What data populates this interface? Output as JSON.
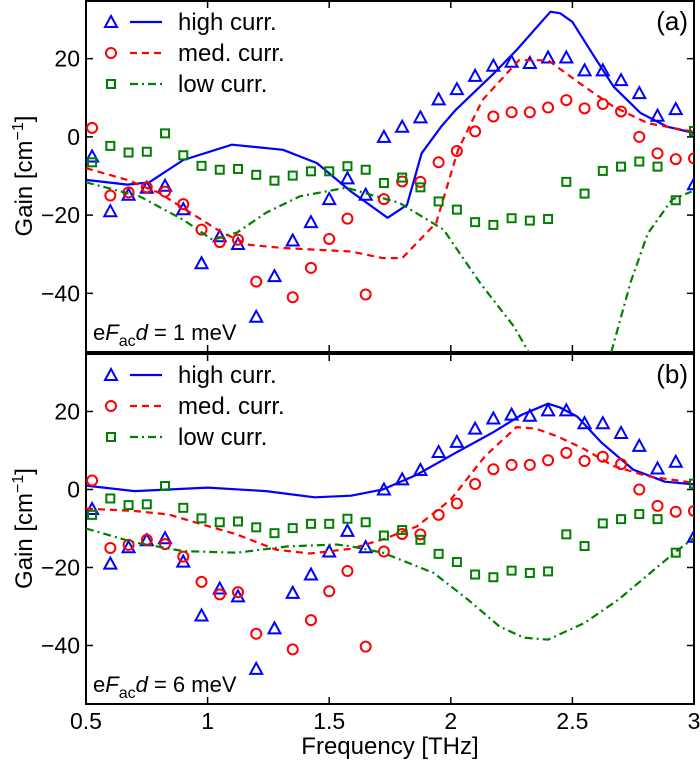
{
  "chart_data": [
    {
      "type": "scatter+line",
      "panel_label": "(a)",
      "annotation": {
        "pre": "e",
        "F": "F",
        "sub": "ac",
        "d": "d",
        "post": " = 1 meV"
      },
      "ylabel": "Gain [cm",
      "ylabel_sup": "−1",
      "ylabel_end": "]",
      "xlim": [
        0.5,
        3
      ],
      "ylim": [
        -55,
        35
      ],
      "yticks": [
        "-40",
        "-20",
        "0",
        "20"
      ],
      "xticks": [
        0.5,
        1,
        1.5,
        2,
        2.5,
        3
      ],
      "legend_position": "top-left",
      "series": [
        {
          "name": "high curr.",
          "color": "#0000ff",
          "marker": "triangle",
          "line": "solid",
          "points": [
            -5,
            -19,
            -14.8,
            -13,
            -12.5,
            -18.5,
            -32.3,
            -25.4,
            -27.4,
            -46,
            -35.6,
            -26.5,
            -21.8,
            -15.9,
            -10.6,
            -14.8,
            0,
            2.6,
            5,
            9.6,
            12.2,
            15.6,
            18.2,
            19.2,
            18.9,
            20.3,
            20.3,
            17,
            17,
            14.5,
            11.2,
            5.4,
            7.1,
            -12.1
          ],
          "curve": [
            [
              0.5,
              -11
            ],
            [
              0.67,
              -12.2
            ],
            [
              0.76,
              -11.6
            ],
            [
              0.9,
              -5.9
            ],
            [
              1.1,
              -2
            ],
            [
              1.31,
              -3.3
            ],
            [
              1.45,
              -6.7
            ],
            [
              1.59,
              -14
            ],
            [
              1.74,
              -20.7
            ],
            [
              1.82,
              -17.4
            ],
            [
              1.88,
              -4.2
            ],
            [
              1.96,
              2.6
            ],
            [
              2.02,
              6.9
            ],
            [
              2.17,
              15.8
            ],
            [
              2.27,
              22.2
            ],
            [
              2.41,
              32
            ],
            [
              2.45,
              31.6
            ],
            [
              2.5,
              29.4
            ],
            [
              2.59,
              20.5
            ],
            [
              2.67,
              12.8
            ],
            [
              2.78,
              6.1
            ],
            [
              2.89,
              2.6
            ],
            [
              3.0,
              1.0
            ]
          ]
        },
        {
          "name": "med. curr.",
          "color": "#ff0000",
          "marker": "circle",
          "line": "dashed",
          "points": [
            2.3,
            -15,
            -14.2,
            -12.9,
            -14,
            -17.2,
            -23.7,
            -26.9,
            -26.3,
            -37,
            null,
            -41,
            -33.5,
            -26.1,
            -20.9,
            -40.3,
            -15.9,
            -11.4,
            -11.5,
            -6.5,
            -3.6,
            1.4,
            5.2,
            6.3,
            6.3,
            7.5,
            9.4,
            7.3,
            8.4,
            6.5,
            0,
            -4.2,
            -5.7,
            -5.5
          ],
          "curve": [
            [
              0.5,
              -8
            ],
            [
              0.67,
              -11
            ],
            [
              0.8,
              -14.3
            ],
            [
              0.93,
              -19.4
            ],
            [
              1.06,
              -24.5
            ],
            [
              1.17,
              -27.6
            ],
            [
              1.31,
              -28.4
            ],
            [
              1.59,
              -29.3
            ],
            [
              1.72,
              -31
            ],
            [
              1.8,
              -31
            ],
            [
              1.94,
              -22
            ],
            [
              2.03,
              -3.3
            ],
            [
              2.13,
              9.4
            ],
            [
              2.28,
              19.6
            ],
            [
              2.4,
              19.6
            ],
            [
              2.53,
              13.7
            ],
            [
              2.67,
              7.7
            ],
            [
              2.81,
              3.5
            ],
            [
              3.0,
              1.3
            ]
          ]
        },
        {
          "name": "low curr.",
          "color": "#008000",
          "marker": "square",
          "line": "dashdot",
          "points": [
            -6.5,
            -2.3,
            -4,
            -3.8,
            0.9,
            -4.7,
            -7.4,
            -8.4,
            -8.2,
            -9.7,
            -11.2,
            -9.9,
            -8.8,
            -8.8,
            -7.5,
            -8.4,
            -11.8,
            -10.4,
            -12.9,
            -16.5,
            -18.6,
            -21.8,
            -22.5,
            -20.8,
            -21.4,
            -21,
            -11.5,
            -14.5,
            -8.7,
            -7.6,
            -6.3,
            -7.6,
            -16.2,
            1.5
          ],
          "curve": [
            [
              0.5,
              -11.6
            ],
            [
              0.72,
              -15.2
            ],
            [
              0.9,
              -21.2
            ],
            [
              1.02,
              -26.3
            ],
            [
              1.12,
              -24.5
            ],
            [
              1.24,
              -19.4
            ],
            [
              1.38,
              -15.2
            ],
            [
              1.57,
              -13
            ],
            [
              1.79,
              -16.9
            ],
            [
              1.97,
              -23.7
            ],
            [
              2.12,
              -37.3
            ],
            [
              2.26,
              -48.5
            ],
            [
              2.32,
              -55
            ],
            null,
            [
              2.66,
              -55
            ],
            [
              2.74,
              -37
            ],
            [
              2.81,
              -24.7
            ],
            [
              2.91,
              -16
            ],
            [
              2.99,
              -14
            ]
          ]
        }
      ]
    },
    {
      "type": "scatter+line",
      "panel_label": "(b)",
      "annotation": {
        "pre": "e",
        "F": "F",
        "sub": "ac",
        "d": "d",
        "post": " = 6 meV"
      },
      "ylabel": "Gain [cm",
      "ylabel_sup": "−1",
      "ylabel_end": "]",
      "xlabel": "Frequency [THz]",
      "xlim": [
        0.5,
        3
      ],
      "ylim": [
        -55,
        35
      ],
      "yticks": [
        "-40",
        "-20",
        "0",
        "20"
      ],
      "xticks": [
        "0.5",
        "1",
        "1.5",
        "2",
        "2.5",
        "3"
      ],
      "legend_position": "top-left",
      "series": [
        {
          "name": "high curr.",
          "color": "#0000ff",
          "marker": "triangle",
          "line": "solid",
          "points": [
            -5,
            -19,
            -14.8,
            -13,
            -12.5,
            -18.5,
            -32.3,
            -25.4,
            -27.4,
            -46,
            -35.6,
            -26.5,
            -21.8,
            -15.9,
            -10.6,
            -14.8,
            0,
            2.6,
            5,
            9.6,
            12.2,
            15.6,
            18.2,
            19.2,
            18.9,
            20.3,
            20.3,
            17,
            17,
            14.5,
            11.2,
            5.4,
            7.1,
            -12.1
          ],
          "curve": [
            [
              0.5,
              1
            ],
            [
              0.7,
              -0.4
            ],
            [
              0.84,
              0
            ],
            [
              1.0,
              0.5
            ],
            [
              1.24,
              -0.4
            ],
            [
              1.44,
              -2
            ],
            [
              1.59,
              -1.6
            ],
            [
              1.72,
              0
            ],
            [
              1.86,
              3.8
            ],
            [
              2.02,
              9.4
            ],
            [
              2.17,
              14.5
            ],
            [
              2.29,
              19.1
            ],
            [
              2.4,
              22
            ],
            [
              2.45,
              21
            ],
            [
              2.52,
              18.7
            ],
            [
              2.62,
              12
            ],
            [
              2.75,
              5.1
            ],
            [
              2.88,
              2
            ],
            [
              3.0,
              1.3
            ]
          ]
        },
        {
          "name": "med. curr.",
          "color": "#ff0000",
          "marker": "circle",
          "line": "dashed",
          "points": [
            2.3,
            -15,
            -14.2,
            -12.9,
            -14,
            -17.2,
            -23.7,
            -26.9,
            -26.3,
            -37,
            null,
            -41,
            -33.5,
            -26.1,
            -20.9,
            -40.3,
            -15.9,
            -11.4,
            -11.5,
            -6.5,
            -3.6,
            1.4,
            5.2,
            6.3,
            6.3,
            7.5,
            9.4,
            7.3,
            8.4,
            6.5,
            0,
            -4.2,
            -5.7,
            -5.5
          ],
          "curve": [
            [
              0.5,
              -4.9
            ],
            [
              0.7,
              -5.5
            ],
            [
              0.84,
              -6.4
            ],
            [
              0.98,
              -9
            ],
            [
              1.12,
              -11.5
            ],
            [
              1.28,
              -15.4
            ],
            [
              1.42,
              -16.4
            ],
            [
              1.59,
              -15.2
            ],
            [
              1.72,
              -12.8
            ],
            [
              1.86,
              -9.5
            ],
            [
              2.0,
              -2.6
            ],
            [
              2.14,
              8.5
            ],
            [
              2.27,
              16
            ],
            [
              2.35,
              15.6
            ],
            [
              2.44,
              13.6
            ],
            [
              2.55,
              10.3
            ],
            [
              2.67,
              6
            ],
            [
              2.81,
              3.4
            ],
            [
              3.0,
              1.7
            ]
          ]
        },
        {
          "name": "low curr.",
          "color": "#008000",
          "marker": "square",
          "line": "dashdot",
          "points": [
            -6.5,
            -2.3,
            -4,
            -3.8,
            0.9,
            -4.7,
            -7.4,
            -8.4,
            -8.2,
            -9.7,
            -11.2,
            -9.9,
            -8.8,
            -8.8,
            -7.5,
            -8.4,
            -11.8,
            -10.4,
            -12.9,
            -16.5,
            -18.6,
            -21.8,
            -22.5,
            -20.8,
            -21.4,
            -21,
            -11.5,
            -14.5,
            -8.7,
            -7.6,
            -6.3,
            -7.6,
            -16.2,
            1.5
          ],
          "curve": [
            [
              0.5,
              -10
            ],
            [
              0.7,
              -13.6
            ],
            [
              0.9,
              -15.8
            ],
            [
              1.12,
              -16.2
            ],
            [
              1.33,
              -14.6
            ],
            [
              1.53,
              -14.1
            ],
            [
              1.59,
              -14.6
            ],
            [
              1.72,
              -16.2
            ],
            [
              1.93,
              -21.4
            ],
            [
              2.07,
              -28.2
            ],
            [
              2.2,
              -35.1
            ],
            [
              2.3,
              -38
            ],
            [
              2.4,
              -38.5
            ],
            [
              2.55,
              -34.2
            ],
            [
              2.69,
              -28.2
            ],
            [
              2.82,
              -21.4
            ],
            [
              2.92,
              -16.2
            ],
            [
              3.0,
              -12.4
            ]
          ]
        }
      ]
    }
  ],
  "marker_x": [
    0.525,
    0.6,
    0.675,
    0.75,
    0.825,
    0.9,
    0.975,
    1.05,
    1.125,
    1.2,
    1.275,
    1.35,
    1.425,
    1.5,
    1.575,
    1.65,
    1.725,
    1.8,
    1.875,
    1.95,
    2.025,
    2.1,
    2.175,
    2.25,
    2.325,
    2.4,
    2.475,
    2.55,
    2.625,
    2.7,
    2.775,
    2.85,
    2.925,
    3.0
  ]
}
